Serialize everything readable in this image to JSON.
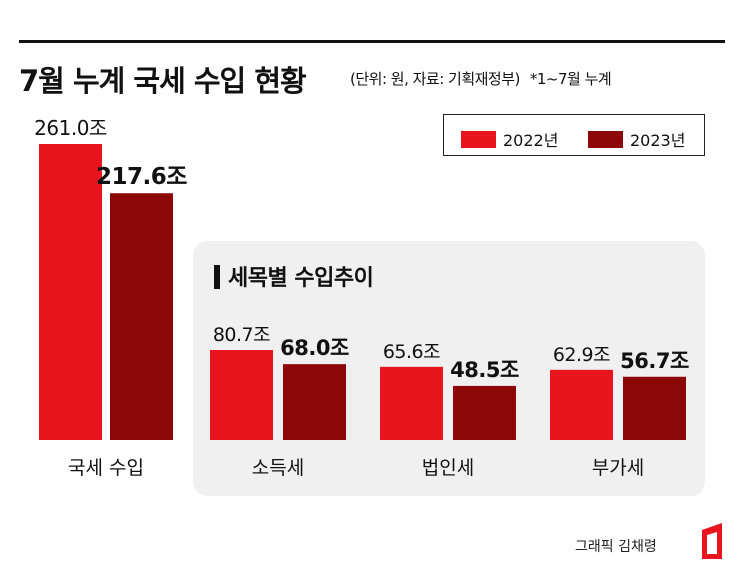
{
  "title": "7월 누계 국세 수입 현황",
  "subtitle": "(단위: 원, 자료: 기획재정부)",
  "note": "*1~7월 누계",
  "panel_title": "세목별 수입추이",
  "credit": "그래픽 김채령",
  "colors": {
    "y2022": "#e8141e",
    "y2023": "#8c0708",
    "panel": "#f0f0f0"
  },
  "legend": [
    {
      "label": "2022년",
      "color": "#e8141e"
    },
    {
      "label": "2023년",
      "color": "#8c0708"
    }
  ],
  "chart_data": [
    {
      "type": "bar",
      "categories": [
        "국세 수입"
      ],
      "series": [
        {
          "name": "2022년",
          "values": [
            261.0
          ],
          "labels": [
            "261.0조"
          ]
        },
        {
          "name": "2023년",
          "values": [
            217.6
          ],
          "labels": [
            "217.6조"
          ]
        }
      ]
    },
    {
      "type": "bar",
      "title": "세목별 수입추이",
      "categories": [
        "소득세",
        "법인세",
        "부가세"
      ],
      "series": [
        {
          "name": "2022년",
          "values": [
            80.7,
            65.6,
            62.9
          ],
          "labels": [
            "80.7조",
            "65.6조",
            "62.9조"
          ]
        },
        {
          "name": "2023년",
          "values": [
            68.0,
            48.5,
            56.7
          ],
          "labels": [
            "68.0조",
            "48.5조",
            "56.7조"
          ]
        }
      ]
    }
  ]
}
